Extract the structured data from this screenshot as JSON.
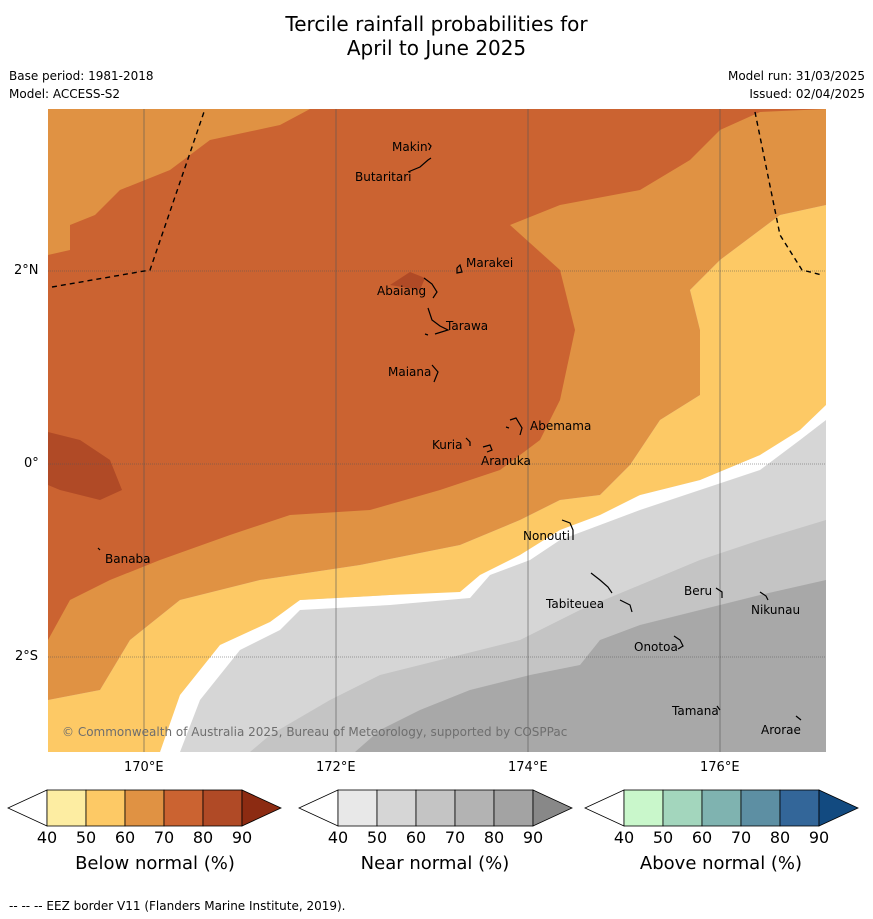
{
  "header": {
    "title_line1": "Tercile rainfall probabilities for",
    "title_line2": "April to June 2025",
    "base_period": "Base period: 1981-2018",
    "model": "Model: ACCESS-S2",
    "model_run": "Model run: 31/03/2025",
    "issued": "Issued: 02/04/2025"
  },
  "map": {
    "lat_labels": [
      "2°N",
      "0°",
      "2°S"
    ],
    "lon_labels": [
      "170°E",
      "172°E",
      "174°E",
      "176°E"
    ],
    "copyright": "© Commonwealth of Australia 2025, Bureau of Meteorology, supported by COSPPac",
    "places": [
      "Makin",
      "Butaritari",
      "Marakei",
      "Abaiang",
      "Tarawa",
      "Maiana",
      "Abemama",
      "Kuria",
      "Aranuka",
      "Nonouti",
      "Banaba",
      "Tabiteuea",
      "Beru",
      "Nikunau",
      "Onotoa",
      "Tamana",
      "Arorae"
    ]
  },
  "legend": {
    "below": {
      "title": "Below normal (%)",
      "ticks": [
        "40",
        "50",
        "60",
        "70",
        "80",
        "90"
      ],
      "colors": [
        "#ffffff",
        "#fdeda2",
        "#fdc965",
        "#e09243",
        "#cb6331",
        "#b04a26",
        "#8c2b12"
      ]
    },
    "near": {
      "title": "Near normal (%)",
      "ticks": [
        "40",
        "50",
        "60",
        "70",
        "80",
        "90"
      ],
      "colors": [
        "#ffffff",
        "#e8e8e8",
        "#d6d6d6",
        "#c4c4c4",
        "#b3b3b3",
        "#a3a3a3",
        "#888888"
      ]
    },
    "above": {
      "title": "Above normal (%)",
      "ticks": [
        "40",
        "50",
        "60",
        "70",
        "80",
        "90"
      ],
      "colors": [
        "#ffffff",
        "#c9f7cb",
        "#a3d6bd",
        "#7fb3b0",
        "#5d8fa3",
        "#336699",
        "#124a80"
      ]
    }
  },
  "footer": {
    "text": "--  --  -- EEZ border V11 (Flanders Marine Institute, 2019)."
  }
}
